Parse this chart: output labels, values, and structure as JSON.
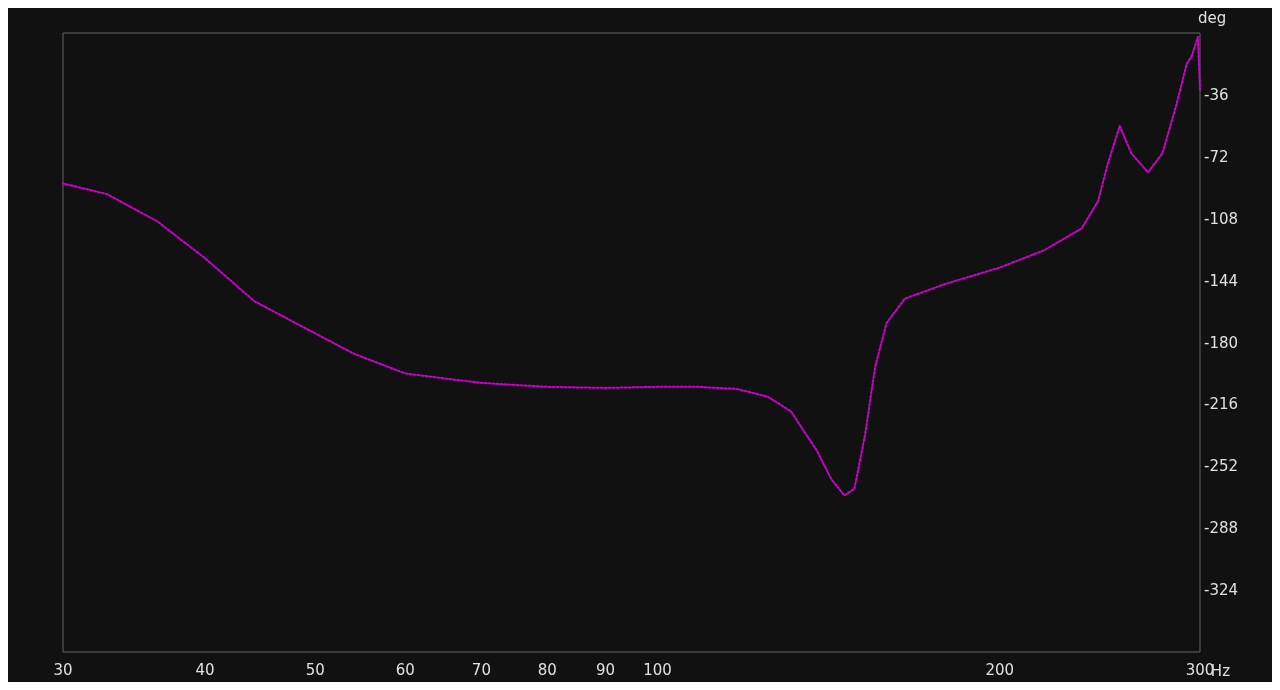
{
  "chart_data": {
    "type": "line",
    "xlabel": "Hz",
    "ylabel": "deg",
    "log": "x",
    "xlim": [
      30,
      300
    ],
    "xticks": [
      30,
      40,
      50,
      60,
      70,
      80,
      90,
      100,
      200,
      300
    ],
    "ylim": [
      -360,
      0
    ],
    "yticks": [
      -36,
      -72,
      -108,
      -144,
      -180,
      -216,
      -252,
      -288,
      -324
    ],
    "grid": false,
    "marker": "none",
    "line_style": "dotted",
    "series": [
      {
        "color": "#cc00cc",
        "x": [
          30,
          32.8,
          36.3,
          40,
          44.2,
          50,
          54.1,
          60,
          70,
          80,
          90,
          100,
          108.6,
          117.4,
          125,
          131,
          138,
          142.2,
          146,
          149,
          152.2,
          155.4,
          159,
          165,
          179,
          200,
          219,
          236,
          244,
          249,
          255,
          261,
          270,
          278,
          286,
          292,
          295,
          298.7,
          300
        ],
        "values": [
          -87.5,
          -93.7,
          -109.5,
          -131,
          -156,
          -174.7,
          -186.6,
          -198,
          -203.5,
          -205.8,
          -206.4,
          -205.8,
          -205.8,
          -207,
          -211.5,
          -220,
          -242.6,
          -259.5,
          -269,
          -265,
          -234,
          -194,
          -168.7,
          -154.5,
          -146,
          -136.4,
          -126.2,
          -113.7,
          -97.9,
          -75.6,
          -54,
          -70,
          -81,
          -70,
          -41.7,
          -18,
          -13.5,
          -2.3,
          -33
        ]
      }
    ]
  }
}
